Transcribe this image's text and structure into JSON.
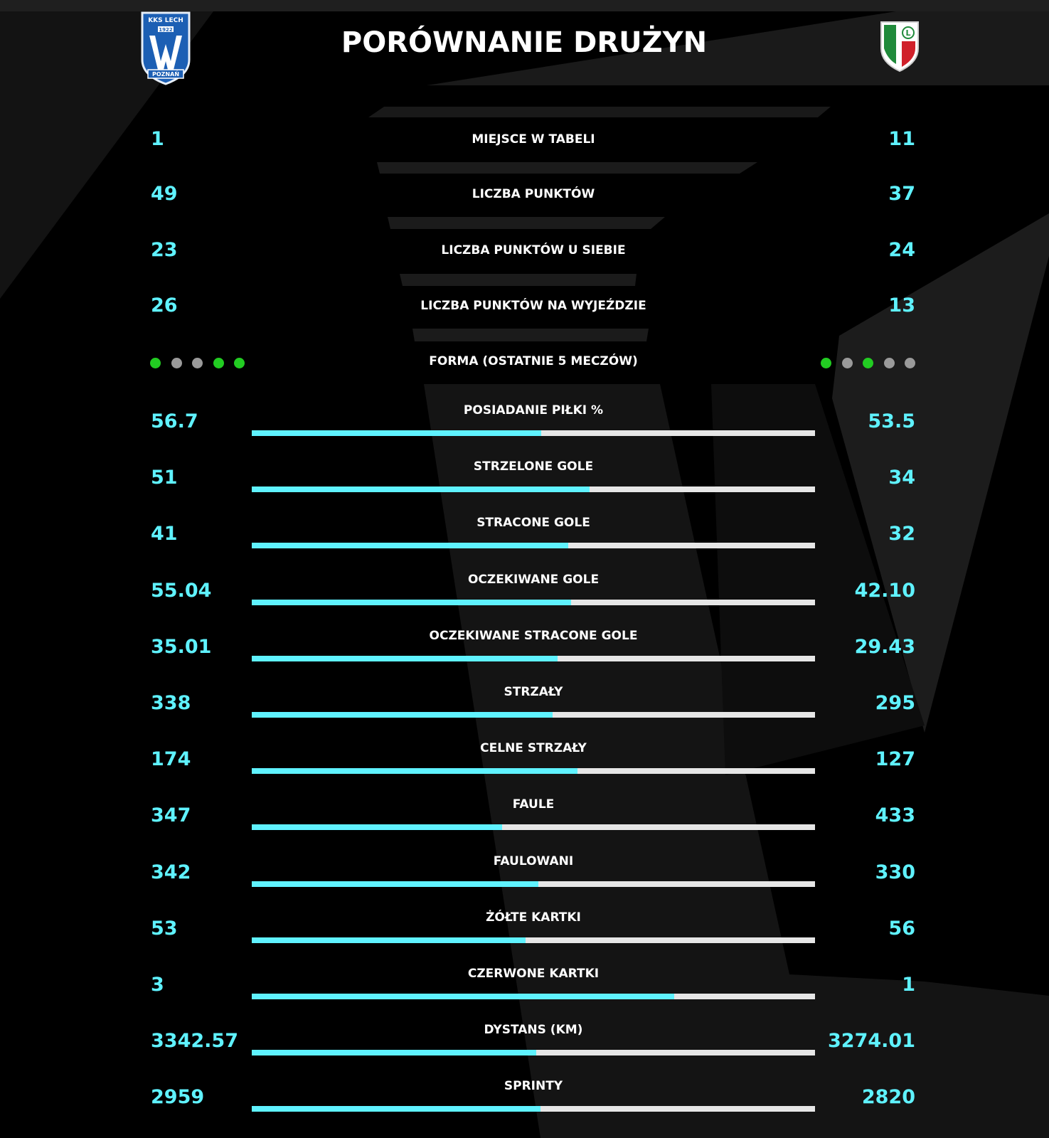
{
  "title": "PORÓWNANIE DRUŻYN",
  "home_team": {
    "logo_text_top": "KKS LECH",
    "logo_text_year": "1922",
    "logo_text_bottom": "POZNAŃ"
  },
  "away_team": {
    "logo_letter": "L"
  },
  "colors": {
    "accent": "#5ff2ff",
    "bar_track": "#e6e6e6",
    "background": "#000000",
    "form_win": "#22cc22",
    "form_other": "#9a9a9a"
  },
  "table_rows": [
    {
      "label": "MIEJSCE W TABELI",
      "home": "1",
      "away": "11"
    },
    {
      "label": "LICZBA PUNKTÓW",
      "home": "49",
      "away": "37"
    },
    {
      "label": "LICZBA PUNKTÓW U SIEBIE",
      "home": "23",
      "away": "24"
    },
    {
      "label": "LICZBA PUNKTÓW NA WYJEŹDZIE",
      "home": "26",
      "away": "13"
    }
  ],
  "form": {
    "label": "FORMA (OSTATNIE 5 MECZÓW)",
    "home": [
      "win",
      "other",
      "other",
      "win",
      "win"
    ],
    "away": [
      "win",
      "other",
      "win",
      "other",
      "other"
    ]
  },
  "stats": [
    {
      "label": "POSIADANIE PIŁKI %",
      "home": "56.7",
      "away": "53.5",
      "home_share": 0.514
    },
    {
      "label": "STRZELONE GOLE",
      "home": "51",
      "away": "34",
      "home_share": 0.6
    },
    {
      "label": "STRACONE GOLE",
      "home": "41",
      "away": "32",
      "home_share": 0.562
    },
    {
      "label": "OCZEKIWANE GOLE",
      "home": "55.04",
      "away": "42.10",
      "home_share": 0.567
    },
    {
      "label": "OCZEKIWANE STRACONE GOLE",
      "home": "35.01",
      "away": "29.43",
      "home_share": 0.543
    },
    {
      "label": "STRZAŁY",
      "home": "338",
      "away": "295",
      "home_share": 0.534
    },
    {
      "label": "CELNE STRZAŁY",
      "home": "174",
      "away": "127",
      "home_share": 0.578
    },
    {
      "label": "FAULE",
      "home": "347",
      "away": "433",
      "home_share": 0.445
    },
    {
      "label": "FAULOWANI",
      "home": "342",
      "away": "330",
      "home_share": 0.509
    },
    {
      "label": "ŻÓŁTE KARTKI",
      "home": "53",
      "away": "56",
      "home_share": 0.486
    },
    {
      "label": "CZERWONE KARTKI",
      "home": "3",
      "away": "1",
      "home_share": 0.75
    },
    {
      "label": "DYSTANS (KM)",
      "home": "3342.57",
      "away": "3274.01",
      "home_share": 0.505
    },
    {
      "label": "SPRINTY",
      "home": "2959",
      "away": "2820",
      "home_share": 0.512
    }
  ]
}
